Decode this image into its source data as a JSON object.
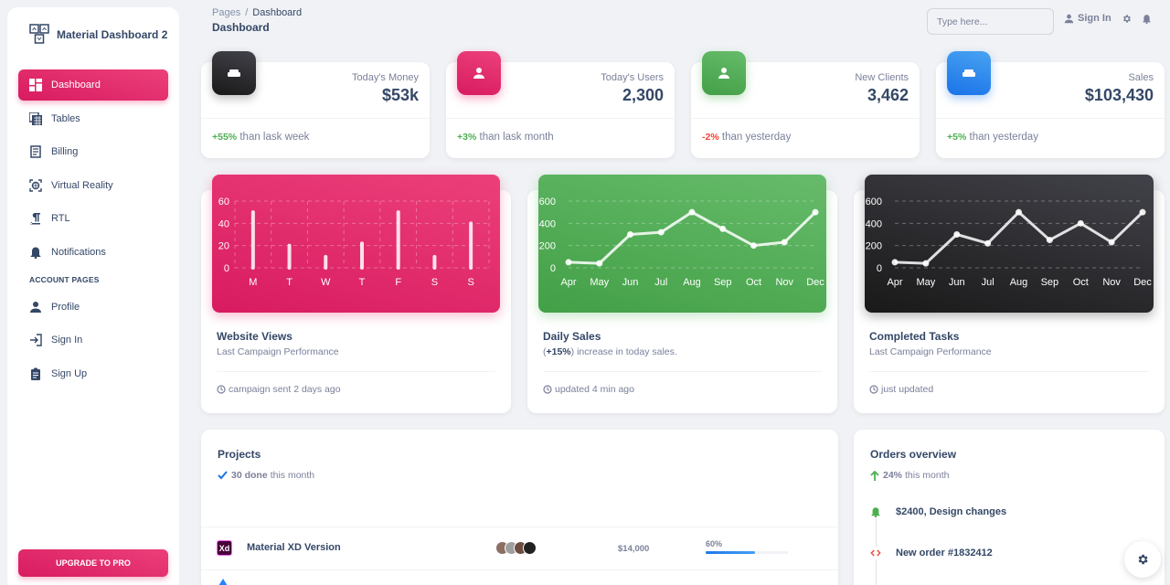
{
  "sidebar": {
    "brand": "Material Dashboard 2",
    "items": [
      {
        "label": "Dashboard",
        "icon": "dashboard-icon",
        "active": true
      },
      {
        "label": "Tables",
        "icon": "table-icon"
      },
      {
        "label": "Billing",
        "icon": "receipt-icon"
      },
      {
        "label": "Virtual Reality",
        "icon": "view-in-ar-icon"
      },
      {
        "label": "RTL",
        "icon": "format-textdirection-r-to-l-icon"
      },
      {
        "label": "Notifications",
        "icon": "bell-icon"
      }
    ],
    "account_section_label": "ACCOUNT PAGES",
    "account_items": [
      {
        "label": "Profile",
        "icon": "person-icon"
      },
      {
        "label": "Sign In",
        "icon": "login-icon"
      },
      {
        "label": "Sign Up",
        "icon": "assignment-icon"
      }
    ],
    "upgrade_label": "UPGRADE TO PRO"
  },
  "header": {
    "breadcrumb_root": "Pages",
    "breadcrumb_sep": "/",
    "breadcrumb_current": "Dashboard",
    "title": "Dashboard",
    "search_placeholder": "Type here...",
    "signin_label": "Sign In"
  },
  "stats": [
    {
      "label": "Today's Money",
      "value": "$53k",
      "change": "+55%",
      "change_type": "pos",
      "suffix": " than lask week",
      "icon": "weekend-icon",
      "color": "#1a1a1a"
    },
    {
      "label": "Today's Users",
      "value": "2,300",
      "change": "+3%",
      "change_type": "pos",
      "suffix": " than lask month",
      "icon": "person-icon",
      "color": "#e91e63"
    },
    {
      "label": "New Clients",
      "value": "3,462",
      "change": "-2%",
      "change_type": "neg",
      "suffix": " than yesterday",
      "icon": "person-icon",
      "color": "#4caf50"
    },
    {
      "label": "Sales",
      "value": "$103,430",
      "change": "+5%",
      "change_type": "pos",
      "suffix": " than yesterday",
      "icon": "weekend-icon",
      "color": "#1a73e8"
    }
  ],
  "charts": [
    {
      "title": "Website Views",
      "subtitle": "Last Campaign Performance",
      "footer": "campaign sent 2 days ago"
    },
    {
      "title": "Daily Sales",
      "subtitle_bold": "+15%",
      "subtitle_pre": "(",
      "subtitle_post": ") increase in today sales.",
      "footer": "updated 4 min ago"
    },
    {
      "title": "Completed Tasks",
      "subtitle": "Last Campaign Performance",
      "footer": "just updated"
    }
  ],
  "chart_data": [
    {
      "type": "bar",
      "title": "Website Views",
      "categories": [
        "M",
        "T",
        "W",
        "T",
        "F",
        "S",
        "S"
      ],
      "values": [
        50,
        20,
        10,
        22,
        50,
        10,
        40
      ],
      "yticks": [
        0,
        20,
        40,
        60
      ],
      "ylim": [
        0,
        60
      ],
      "grid": true,
      "background": "#e91e63"
    },
    {
      "type": "line",
      "title": "Daily Sales",
      "categories": [
        "Apr",
        "May",
        "Jun",
        "Jul",
        "Aug",
        "Sep",
        "Oct",
        "Nov",
        "Dec"
      ],
      "values": [
        50,
        40,
        300,
        320,
        500,
        350,
        200,
        230,
        500
      ],
      "yticks": [
        0,
        200,
        400,
        600
      ],
      "ylim": [
        0,
        600
      ],
      "grid": true,
      "background": "#4caf50"
    },
    {
      "type": "line",
      "title": "Completed Tasks",
      "categories": [
        "Apr",
        "May",
        "Jun",
        "Jul",
        "Aug",
        "Sep",
        "Oct",
        "Nov",
        "Dec"
      ],
      "values": [
        50,
        40,
        300,
        220,
        500,
        250,
        400,
        230,
        500
      ],
      "yticks": [
        0,
        200,
        400,
        600
      ],
      "ylim": [
        0,
        600
      ],
      "grid": true,
      "background": "#262626"
    }
  ],
  "projects": {
    "title": "Projects",
    "done_count": "30 done",
    "done_suffix": "this month",
    "rows": [
      {
        "icon": "Xd",
        "name": "Material XD Version",
        "budget": "$14,000",
        "completion": "60%",
        "completion_value": 60
      }
    ]
  },
  "orders": {
    "title": "Orders overview",
    "change": "24%",
    "change_suffix": "this month",
    "items": [
      {
        "text": "$2400, Design changes",
        "icon": "bell-icon",
        "color": "#4caf50"
      },
      {
        "text": "New order #1832412",
        "icon": "code-icon",
        "color": "#f44335"
      }
    ]
  }
}
